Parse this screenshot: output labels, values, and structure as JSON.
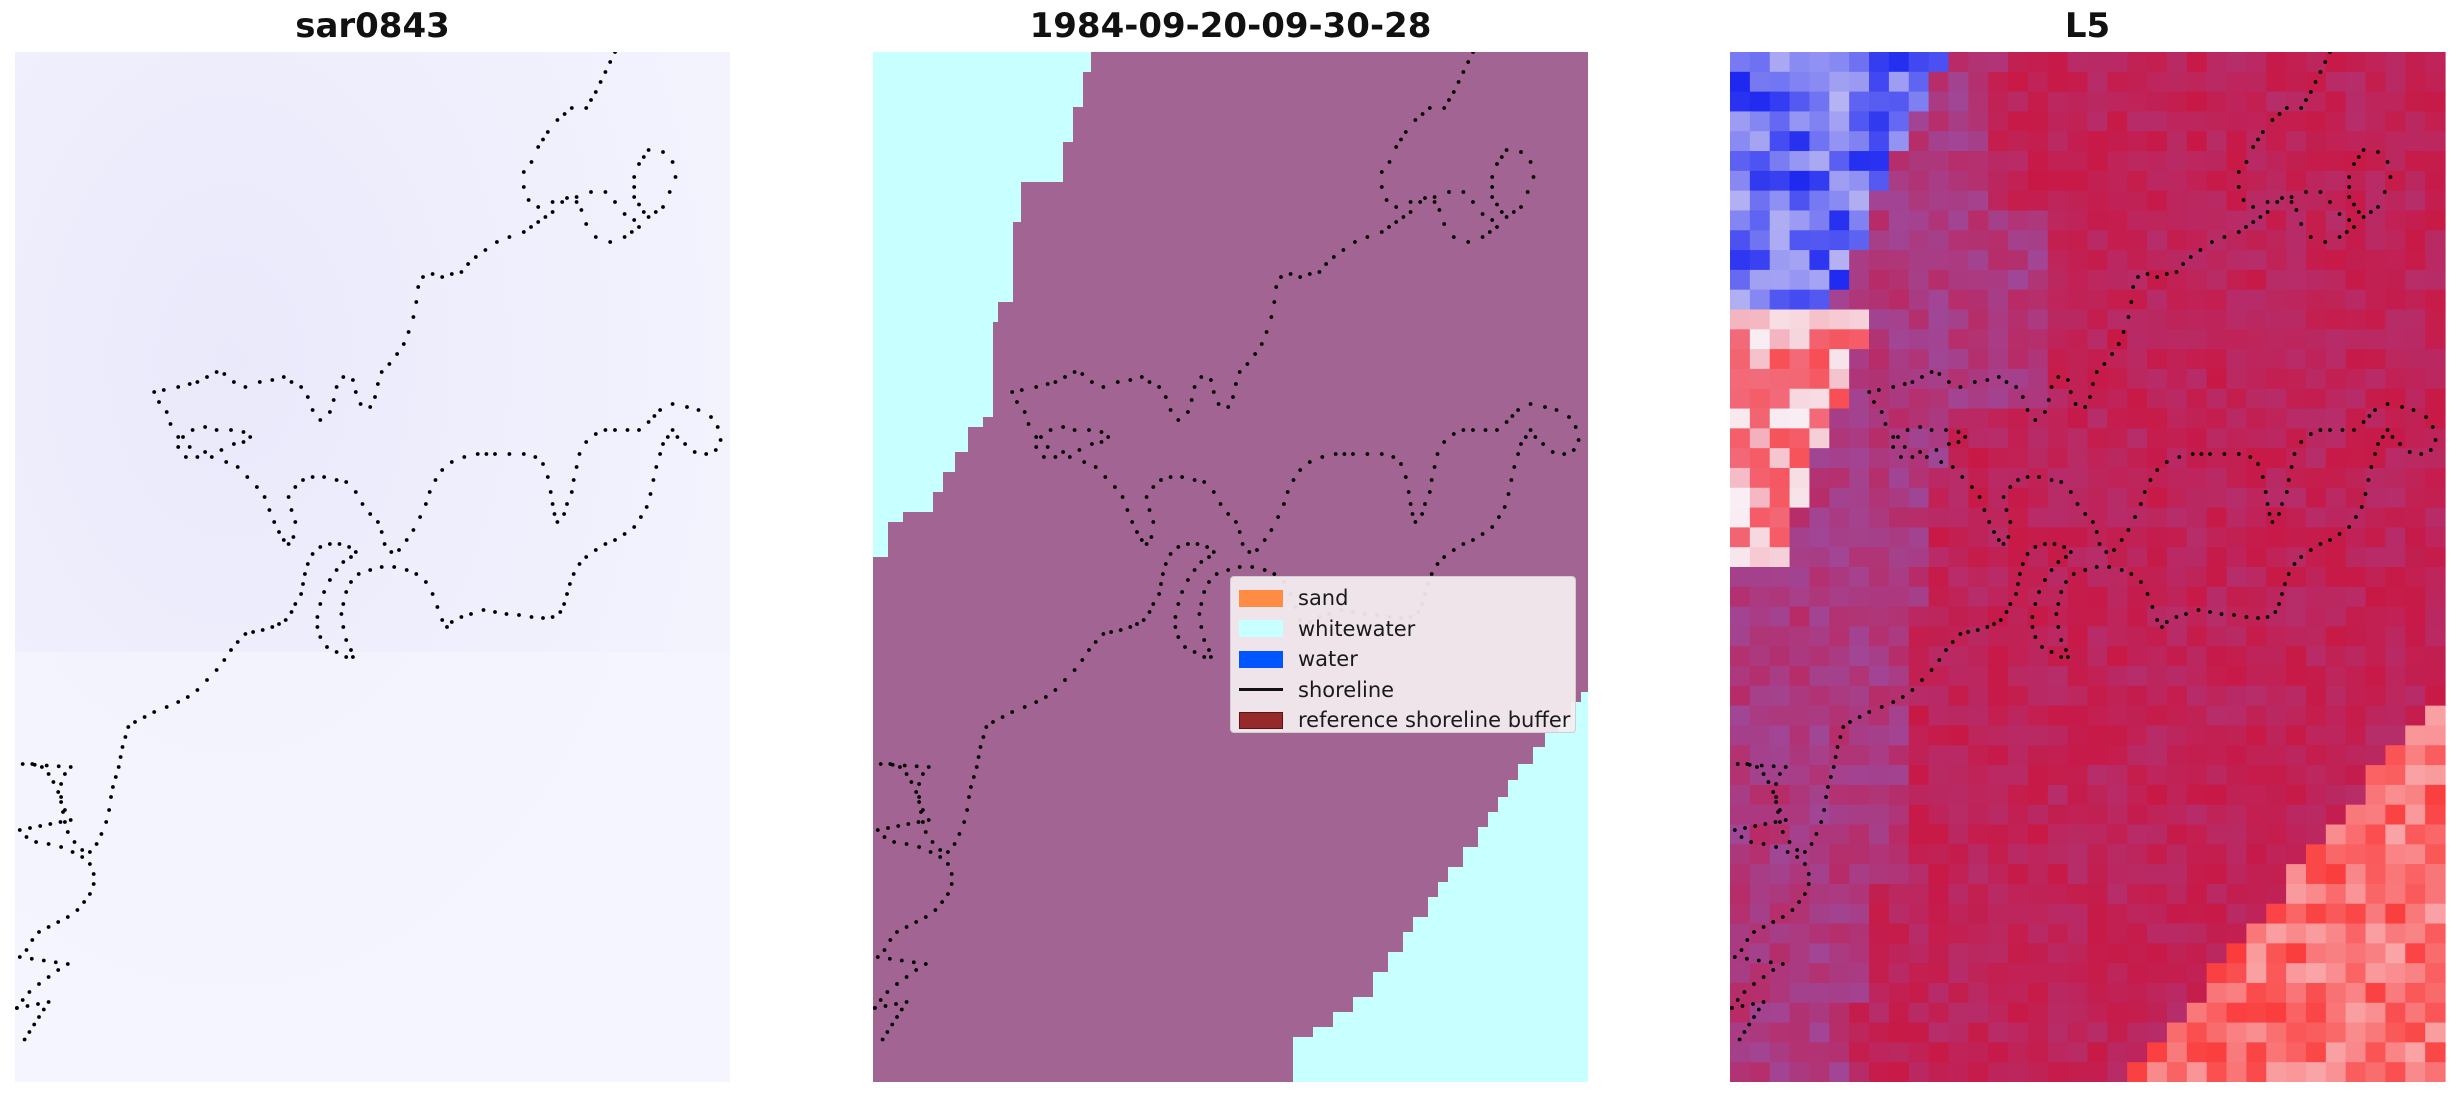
{
  "panels": [
    {
      "title": "sar0843",
      "image": "sar-rgb-composite"
    },
    {
      "title": "1984-09-20-09-30-28",
      "image": "classification-map"
    },
    {
      "title": "L5",
      "image": "index-heatmap"
    }
  ],
  "legend": {
    "items": [
      {
        "label": "sand",
        "color": "#ff8c42"
      },
      {
        "label": "whitewater",
        "color": "#c8ffff"
      },
      {
        "label": "water",
        "color": "#0055ff"
      },
      {
        "label": "shoreline",
        "color": "#111111"
      },
      {
        "label": "reference shoreline buffer",
        "color": "#962a2a"
      }
    ]
  },
  "colors": {
    "background": "#ffffff",
    "sar_tint": "#efeffd",
    "classified_land": "#a26593",
    "whitewater": "#c8ffff",
    "heatmap_red": "#c8264f",
    "heatmap_blue": "#2b3cf0"
  }
}
